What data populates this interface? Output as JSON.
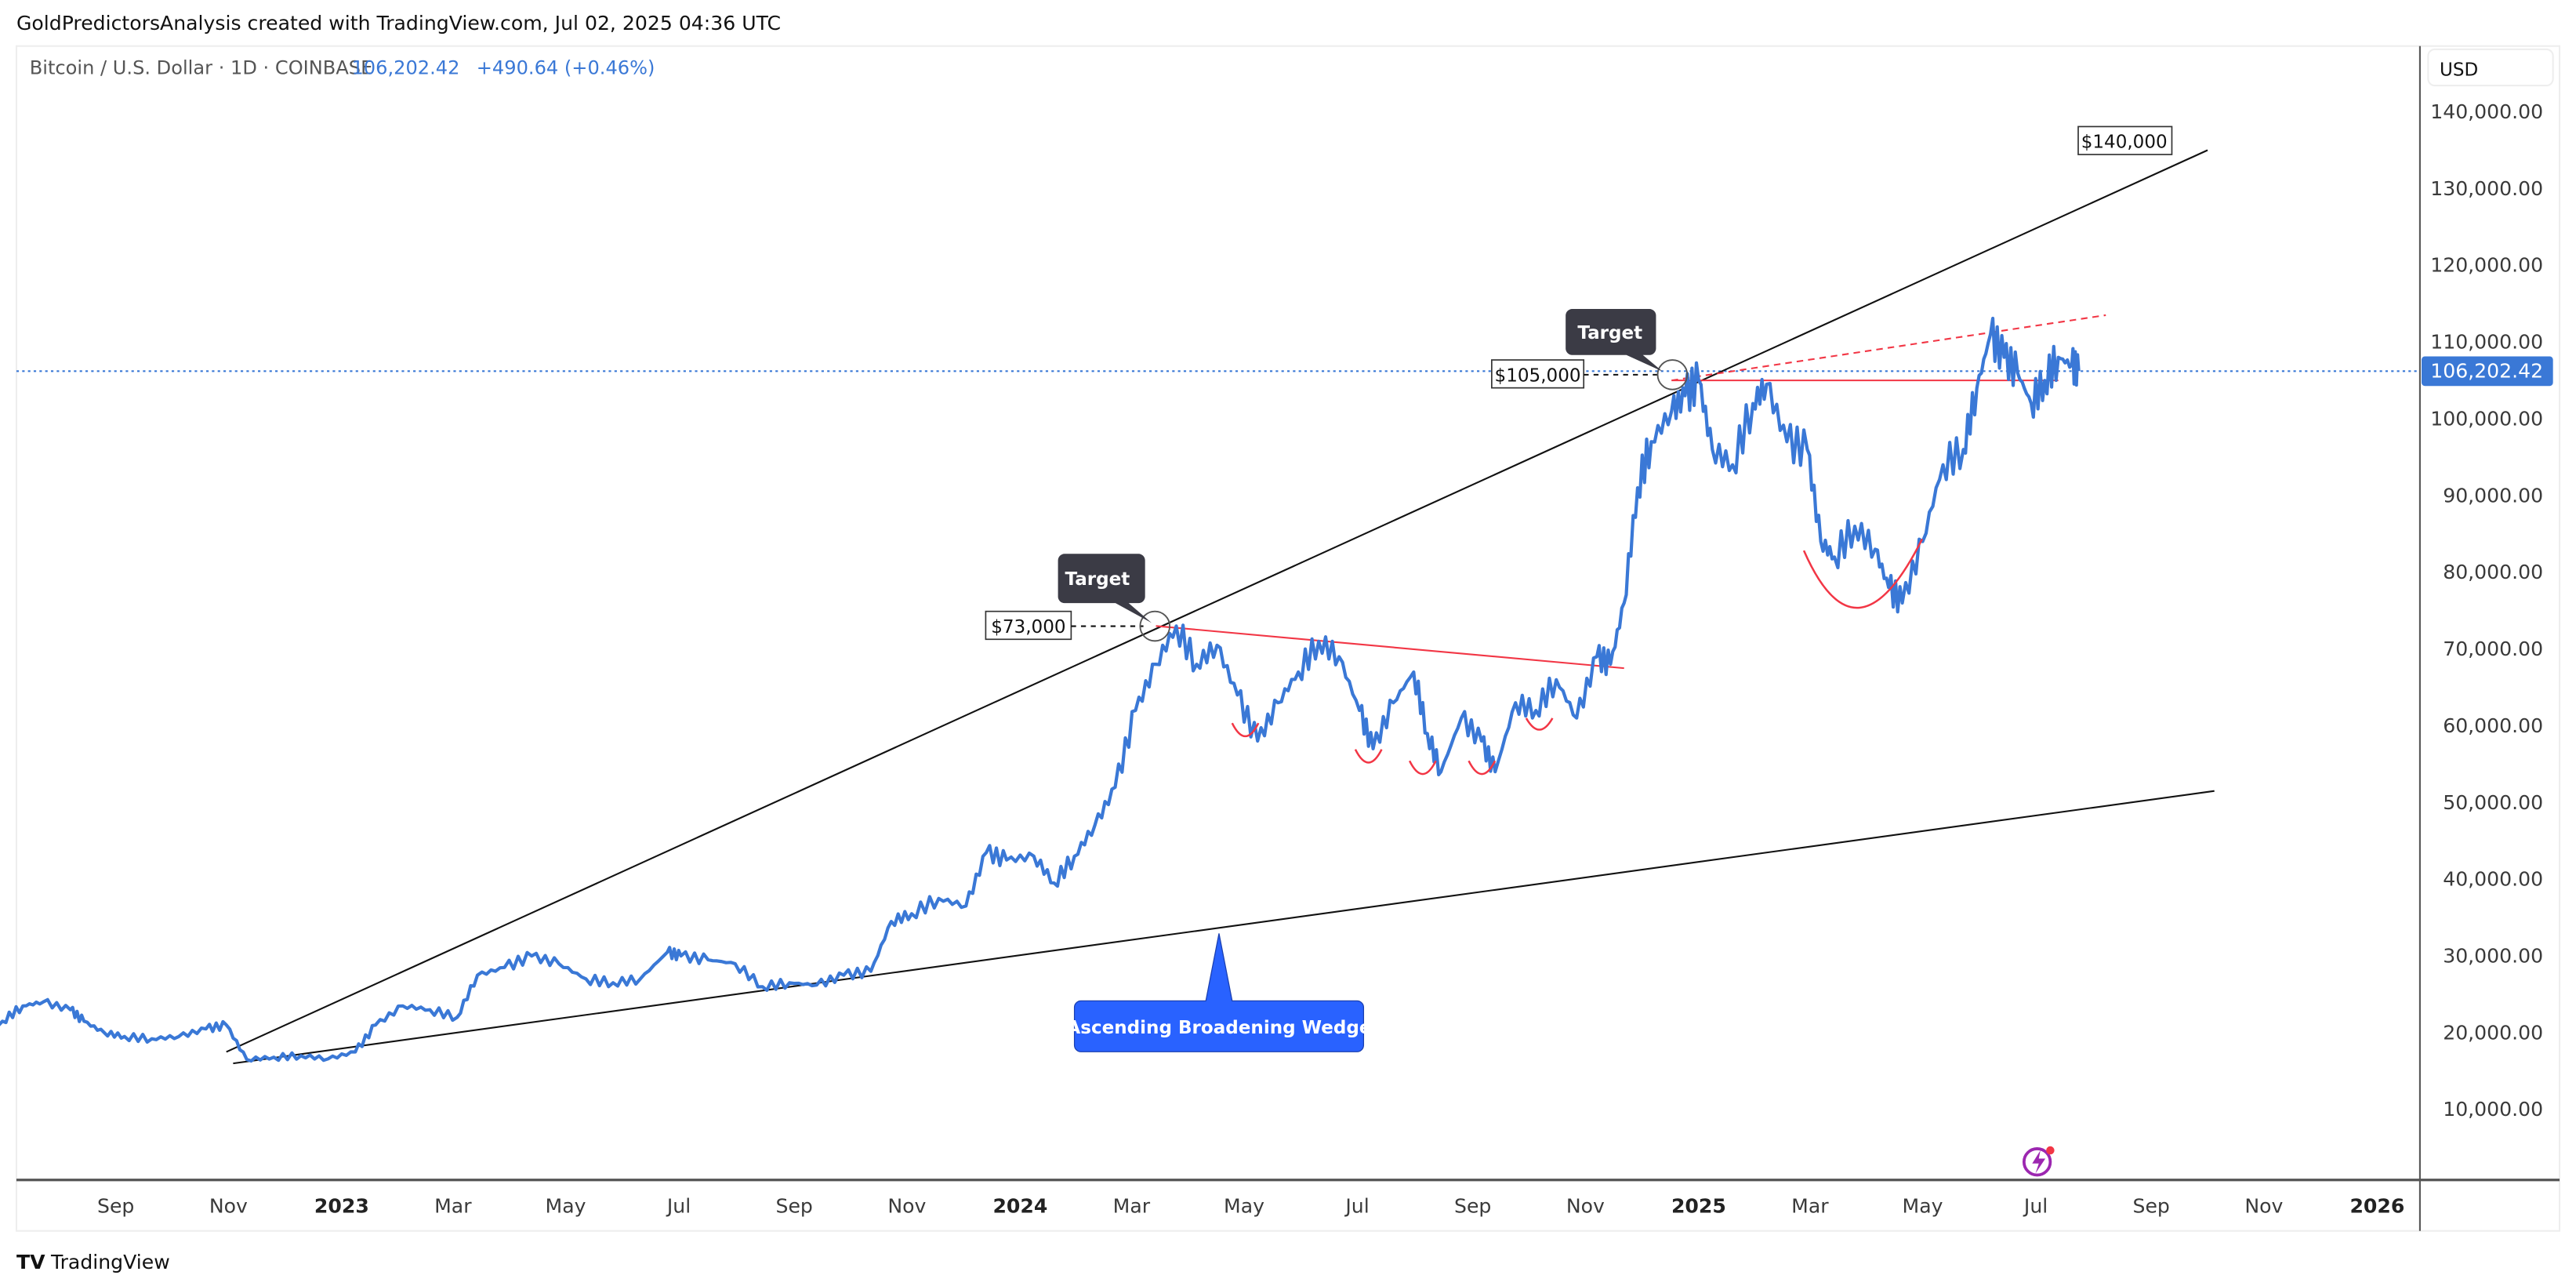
{
  "header": {
    "attribution": "GoldPredictorsAnalysis created with TradingView.com, Jul 02, 2025 04:36 UTC",
    "symbol": "Bitcoin / U.S. Dollar · 1D · COINBASE",
    "last_price": "106,202.42",
    "change": "+490.64 (+0.46%)"
  },
  "footer": {
    "logo_text": "TradingView"
  },
  "colors": {
    "series": "#3a78d6",
    "accent": "#2962ff",
    "trend": "#111111",
    "pattern": "#f23645",
    "price_label": "#3a78d6"
  },
  "chart_data": {
    "type": "line",
    "title": "Bitcoin / U.S. Dollar · 1D · COINBASE",
    "currency": "USD",
    "current_price": 106202.42,
    "current_price_label": "106,202.42",
    "ylim": [
      0,
      150000
    ],
    "y_ticks": [
      {
        "v": 140000,
        "label": "140,000.00"
      },
      {
        "v": 130000,
        "label": "130,000.00"
      },
      {
        "v": 120000,
        "label": "120,000.00"
      },
      {
        "v": 110000,
        "label": "110,000.00"
      },
      {
        "v": 100000,
        "label": "100,000.00"
      },
      {
        "v": 90000,
        "label": "90,000.00"
      },
      {
        "v": 80000,
        "label": "80,000.00"
      },
      {
        "v": 70000,
        "label": "70,000.00"
      },
      {
        "v": 60000,
        "label": "60,000.00"
      },
      {
        "v": 50000,
        "label": "50,000.00"
      },
      {
        "v": 40000,
        "label": "40,000.00"
      },
      {
        "v": 30000,
        "label": "30,000.00"
      },
      {
        "v": 20000,
        "label": "20,000.00"
      },
      {
        "v": 10000,
        "label": "10,000.00"
      }
    ],
    "x_ticks": [
      {
        "t": 2022.667,
        "label": "Sep",
        "year": false
      },
      {
        "t": 2022.833,
        "label": "Nov",
        "year": false
      },
      {
        "t": 2023.0,
        "label": "2023",
        "year": true
      },
      {
        "t": 2023.164,
        "label": "Mar",
        "year": false
      },
      {
        "t": 2023.33,
        "label": "May",
        "year": false
      },
      {
        "t": 2023.497,
        "label": "Jul",
        "year": false
      },
      {
        "t": 2023.667,
        "label": "Sep",
        "year": false
      },
      {
        "t": 2023.833,
        "label": "Nov",
        "year": false
      },
      {
        "t": 2024.0,
        "label": "2024",
        "year": true
      },
      {
        "t": 2024.164,
        "label": "Mar",
        "year": false
      },
      {
        "t": 2024.33,
        "label": "May",
        "year": false
      },
      {
        "t": 2024.497,
        "label": "Jul",
        "year": false
      },
      {
        "t": 2024.667,
        "label": "Sep",
        "year": false
      },
      {
        "t": 2024.833,
        "label": "Nov",
        "year": false
      },
      {
        "t": 2025.0,
        "label": "2025",
        "year": true
      },
      {
        "t": 2025.164,
        "label": "Mar",
        "year": false
      },
      {
        "t": 2025.33,
        "label": "May",
        "year": false
      },
      {
        "t": 2025.497,
        "label": "Jul",
        "year": false
      },
      {
        "t": 2025.667,
        "label": "Sep",
        "year": false
      },
      {
        "t": 2025.833,
        "label": "Nov",
        "year": false
      },
      {
        "t": 2026.0,
        "label": "2026",
        "year": true
      }
    ],
    "series": [
      {
        "name": "BTCUSD",
        "x": [
          2022.46,
          2022.5,
          2022.53,
          2022.56,
          2022.6,
          2022.62,
          2022.65,
          2022.68,
          2022.72,
          2022.76,
          2022.8,
          2022.83,
          2022.86,
          2022.9,
          2022.94,
          2022.98,
          2023.02,
          2023.05,
          2023.09,
          2023.13,
          2023.17,
          2023.2,
          2023.24,
          2023.28,
          2023.32,
          2023.36,
          2023.4,
          2023.44,
          2023.48,
          2023.5,
          2023.54,
          2023.58,
          2023.62,
          2023.66,
          2023.7,
          2023.74,
          2023.78,
          2023.81,
          2023.84,
          2023.88,
          2023.92,
          2023.95,
          2023.98,
          2024.02,
          2024.05,
          2024.08,
          2024.11,
          2024.14,
          2024.17,
          2024.2,
          2024.23,
          2024.26,
          2024.29,
          2024.32,
          2024.35,
          2024.38,
          2024.41,
          2024.44,
          2024.47,
          2024.5,
          2024.52,
          2024.55,
          2024.58,
          2024.6,
          2024.62,
          2024.65,
          2024.68,
          2024.7,
          2024.73,
          2024.76,
          2024.79,
          2024.82,
          2024.85,
          2024.87,
          2024.89,
          2024.91,
          2024.93,
          2024.96,
          2024.98,
          2025.0,
          2025.02,
          2025.05,
          2025.08,
          2025.1,
          2025.13,
          2025.16,
          2025.18,
          2025.2,
          2025.23,
          2025.26,
          2025.28,
          2025.3,
          2025.33,
          2025.36,
          2025.39,
          2025.41,
          2025.43,
          2025.45,
          2025.47,
          2025.49,
          2025.51,
          2025.53,
          2025.55,
          2025.56
        ],
        "y": [
          20000,
          21500,
          23500,
          24000,
          23000,
          21500,
          20000,
          19500,
          19200,
          19500,
          20500,
          21000,
          16500,
          16800,
          17000,
          16600,
          17500,
          21000,
          23500,
          23000,
          22000,
          27500,
          28500,
          30000,
          29000,
          27000,
          26500,
          27000,
          30500,
          30000,
          29500,
          29000,
          26000,
          26500,
          26200,
          27500,
          28000,
          34500,
          35500,
          37500,
          36500,
          43500,
          42500,
          43000,
          39500,
          43000,
          47000,
          52000,
          62000,
          68000,
          73000,
          68000,
          70500,
          64000,
          58000,
          63000,
          67000,
          71000,
          69000,
          62000,
          57000,
          63000,
          67000,
          59000,
          54000,
          61000,
          58000,
          54000,
          63000,
          62000,
          66000,
          61000,
          69000,
          68000,
          76000,
          91000,
          97000,
          101000,
          103000,
          105000,
          96000,
          94000,
          102000,
          104500,
          97000,
          96000,
          84000,
          82000,
          86000,
          83000,
          78000,
          76000,
          84000,
          94000,
          96000,
          104000,
          111000,
          108000,
          106000,
          102000,
          105000,
          108000,
          107000,
          106202
        ]
      }
    ],
    "annotations": {
      "upper_trendline": {
        "from": [
          2022.83,
          17500
        ],
        "to": [
          2025.75,
          135000
        ]
      },
      "lower_trendline": {
        "from": [
          2022.84,
          16000
        ],
        "to": [
          2025.76,
          51500
        ]
      },
      "red_resistance_2024": {
        "from": [
          2024.2,
          73000
        ],
        "to": [
          2024.89,
          67500
        ]
      },
      "red_resistance_2025": {
        "from": [
          2024.96,
          105000
        ],
        "to": [
          2025.53,
          105000
        ]
      },
      "red_dashed_2025": {
        "from": [
          2024.96,
          105000
        ],
        "to": [
          2025.6,
          113500
        ]
      },
      "labels": {
        "p73k": "$73,000",
        "p105k": "$105,000",
        "p140k": "$140,000",
        "target1": "Target",
        "target2": "Target",
        "wedge": "Ascending Broadening Wedge"
      }
    }
  }
}
